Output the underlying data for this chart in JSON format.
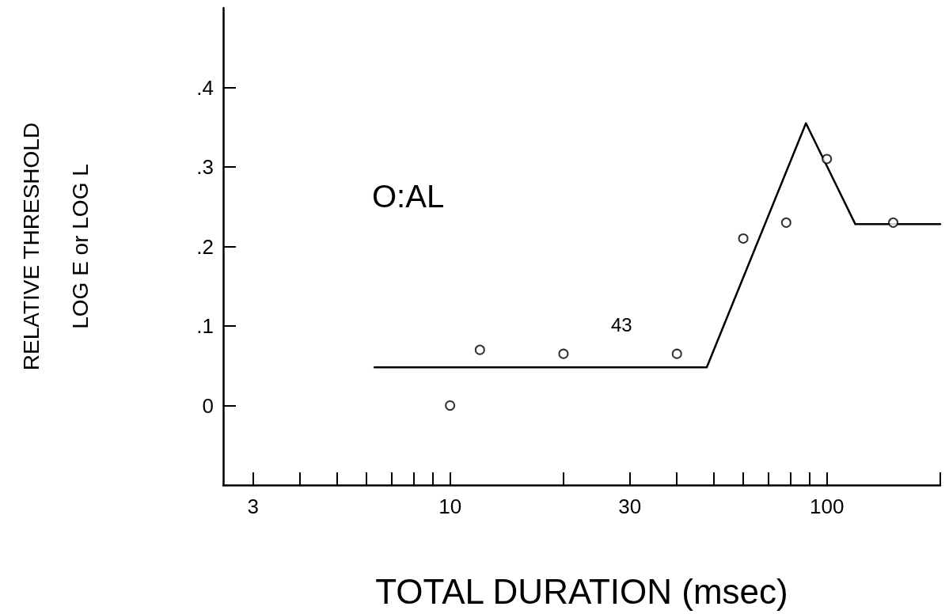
{
  "chart_data": {
    "type": "scatter",
    "xlabel": "TOTAL DURATION (msec)",
    "ylabel": "RELATIVE THRESHOLD\nLOG E or LOG L",
    "log": "x",
    "xlim": [
      2.5,
      200
    ],
    "ylim": [
      -0.1,
      0.5
    ],
    "xticks": [
      3,
      {
        "value": 4,
        "label": null
      },
      {
        "value": 5,
        "label": null
      },
      {
        "value": 6,
        "label": null
      },
      {
        "value": 7,
        "label": null
      },
      {
        "value": 8,
        "label": null
      },
      {
        "value": 9,
        "label": null
      },
      10,
      {
        "value": 20,
        "label": null
      },
      30,
      {
        "value": 40,
        "label": null
      },
      {
        "value": 50,
        "label": null
      },
      {
        "value": 60,
        "label": null
      },
      {
        "value": 70,
        "label": null
      },
      {
        "value": 80,
        "label": null
      },
      {
        "value": 90,
        "label": null
      },
      100,
      {
        "value": 200,
        "label": null
      }
    ],
    "yticks": [
      {
        "value": 0,
        "label": "0"
      },
      {
        "value": 0.1,
        "label": ".1"
      },
      {
        "value": 0.2,
        "label": ".2"
      },
      {
        "value": 0.3,
        "label": ".3"
      },
      {
        "value": 0.4,
        "label": ".4"
      }
    ],
    "grid": false,
    "marker": "circle",
    "series": [
      {
        "type": "scatter",
        "color": "#000000",
        "x": [
          10,
          12,
          20,
          40,
          60,
          78,
          100,
          150
        ],
        "values": [
          0,
          0.07,
          0.065,
          0.065,
          0.21,
          0.23,
          0.31,
          0.23
        ]
      },
      {
        "type": "line",
        "color": "#000000",
        "marker": "none",
        "line_style": "solid",
        "x": [
          6.3,
          48,
          88,
          119,
          200
        ],
        "values": [
          0.048,
          0.048,
          0.355,
          0.228,
          0.228
        ]
      }
    ],
    "annotations": [
      "O:AL",
      "43"
    ]
  }
}
